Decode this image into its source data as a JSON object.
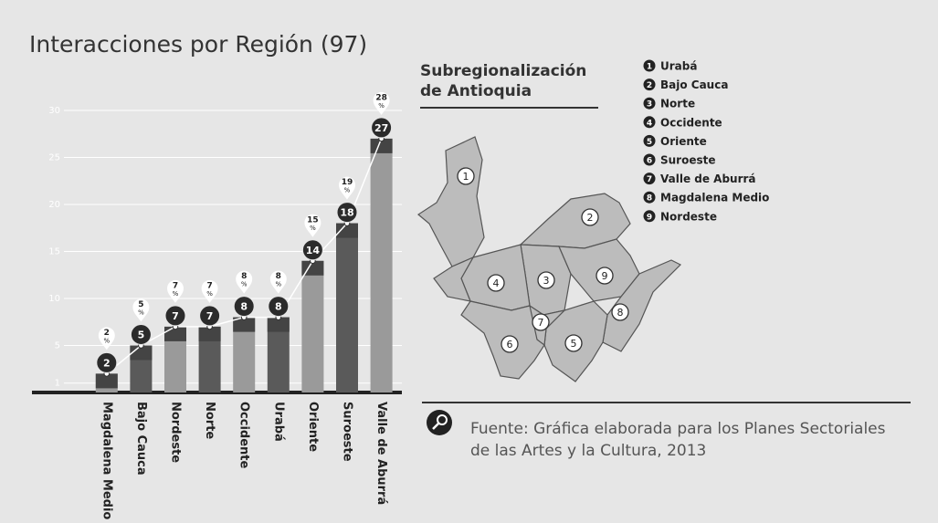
{
  "chart_data": {
    "type": "bar",
    "title": "Interacciones por Región (97)",
    "categories": [
      "Magdalena Medio",
      "Bajo Cauca",
      "Nordeste",
      "Norte",
      "Occidente",
      "Urabá",
      "Oriente",
      "Suroeste",
      "Valle de Aburrá"
    ],
    "values": [
      2,
      5,
      7,
      7,
      8,
      8,
      14,
      18,
      27
    ],
    "colors": [
      "#9a9a9a",
      "#5a5a5a",
      "#9a9a9a",
      "#5a5a5a",
      "#9a9a9a",
      "#5a5a5a",
      "#9a9a9a",
      "#5a5a5a",
      "#9a9a9a"
    ],
    "percent_values": [
      2,
      5,
      7,
      7,
      8,
      8,
      15,
      19,
      28
    ],
    "percent_unit": "%",
    "ylim": [
      0,
      30
    ],
    "yticks": [
      1,
      5,
      10,
      15,
      20,
      25,
      30
    ],
    "grid": true,
    "line_color": "#ffffff"
  },
  "map": {
    "title_lines": [
      "Subregionalización",
      "de Antioquia"
    ],
    "regions": [
      {
        "number": "1",
        "name": "Urabá"
      },
      {
        "number": "2",
        "name": "Bajo Cauca"
      },
      {
        "number": "3",
        "name": "Norte"
      },
      {
        "number": "4",
        "name": "Occidente"
      },
      {
        "number": "5",
        "name": "Oriente"
      },
      {
        "number": "6",
        "name": "Suroeste"
      },
      {
        "number": "7",
        "name": "Valle de Aburrá"
      },
      {
        "number": "8",
        "name": "Magdalena Medio"
      },
      {
        "number": "9",
        "name": "Nordeste"
      }
    ]
  },
  "source": {
    "lines": [
      "Fuente: Gráfica elaborada para los Planes Sectoriales",
      "de las Artes y la Cultura, 2013"
    ]
  }
}
